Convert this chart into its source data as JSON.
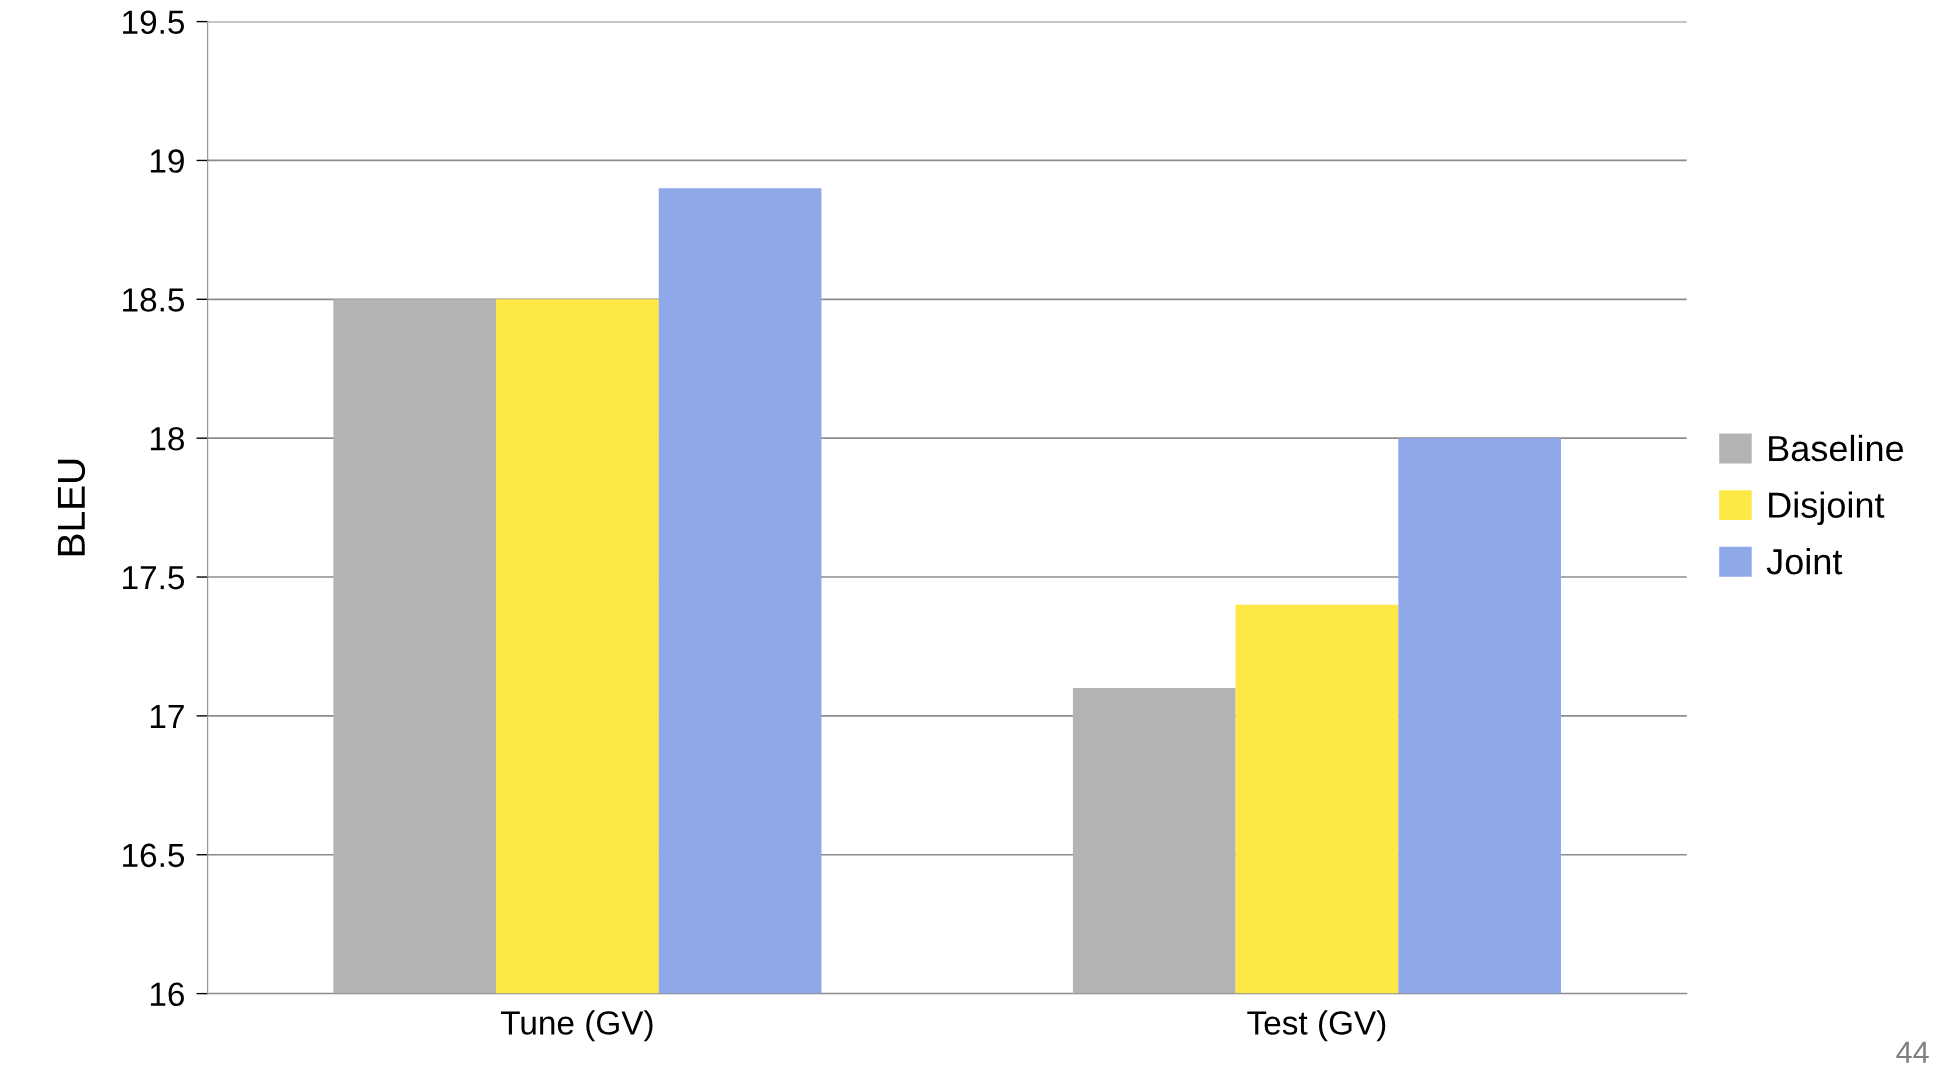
{
  "chart_data": {
    "type": "bar",
    "ylabel": "BLEU",
    "categories": [
      "Tune (GV)",
      "Test (GV)"
    ],
    "series": [
      {
        "name": "Baseline",
        "color": "#b3b3b3",
        "values": [
          18.5,
          17.1
        ]
      },
      {
        "name": "Disjoint",
        "color": "#fde846",
        "values": [
          18.5,
          17.4
        ]
      },
      {
        "name": "Joint",
        "color": "#8ea8ea",
        "values": [
          18.9,
          18.0
        ]
      }
    ],
    "ylim": [
      16,
      19.5
    ],
    "yticks": [
      16,
      16.5,
      17,
      17.5,
      18,
      18.5,
      19,
      19.5
    ],
    "grid": "y",
    "legend": "right",
    "annotations": [
      "44"
    ]
  }
}
